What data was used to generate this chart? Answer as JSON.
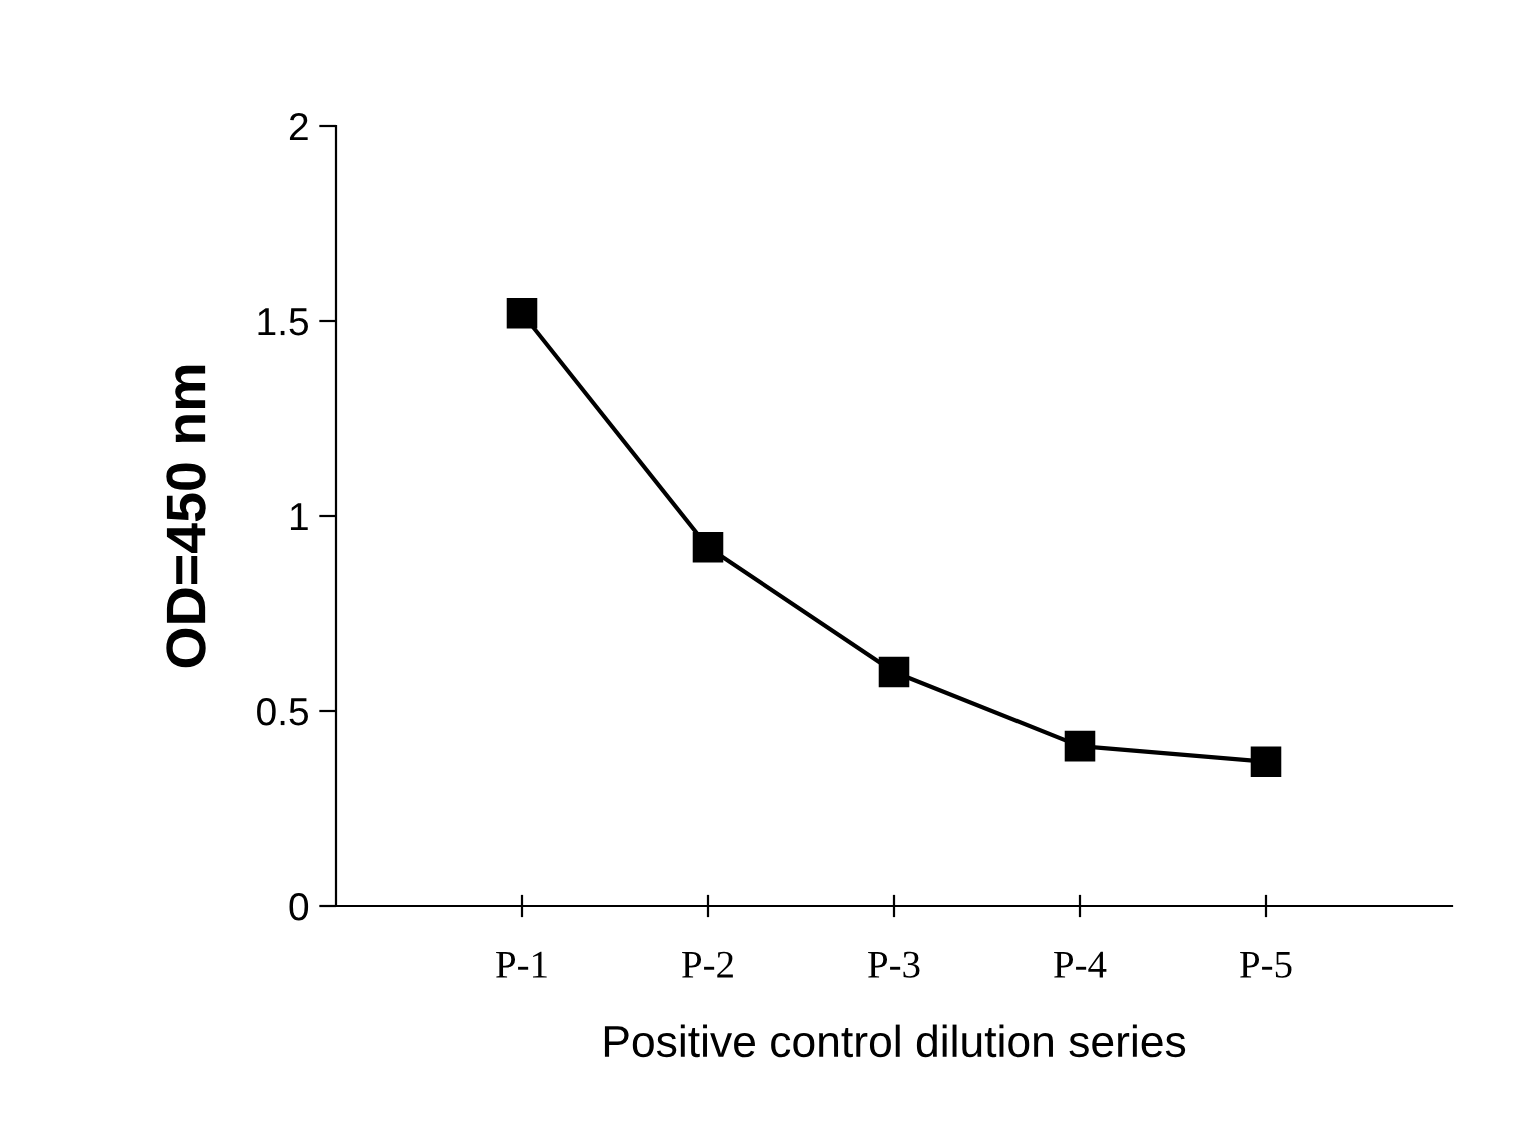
{
  "chart_data": {
    "type": "line",
    "xlabel": "Positive control dilution series",
    "ylabel": "OD=450 nm",
    "categories": [
      "P-1",
      "P-2",
      "P-3",
      "P-4",
      "P-5"
    ],
    "series": [
      {
        "color": "#000000",
        "values": [
          1.52,
          0.92,
          0.6,
          0.41,
          0.37
        ]
      }
    ],
    "ylim": [
      0,
      2
    ],
    "yticks": [
      0,
      0.5,
      1,
      1.5,
      2
    ],
    "marker": "square",
    "line_style": "solid",
    "grid": false,
    "legend": false
  }
}
